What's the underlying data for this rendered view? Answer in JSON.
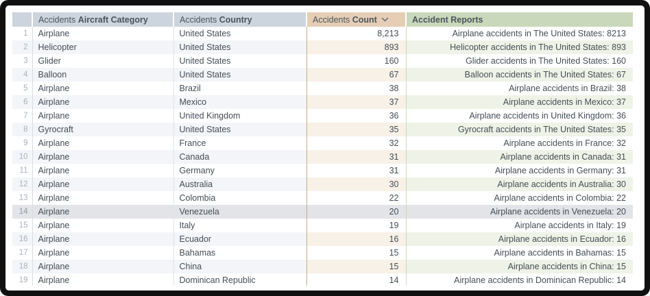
{
  "table": {
    "columns": [
      {
        "id": "row_number",
        "prefix": "",
        "label": ""
      },
      {
        "id": "aircraft_category",
        "prefix": "Accidents",
        "label": "Aircraft Category"
      },
      {
        "id": "country",
        "prefix": "Accidents",
        "label": "Country"
      },
      {
        "id": "count",
        "prefix": "Accidents",
        "label": "Count",
        "sort": "descending"
      },
      {
        "id": "reports",
        "prefix": "",
        "label": "Accident Reports"
      }
    ],
    "selected_row": 14,
    "rows": [
      {
        "n": 1,
        "category": "Airplane",
        "country": "United States",
        "count": "8,213",
        "report": "Airplane accidents in The United States: 8213"
      },
      {
        "n": 2,
        "category": "Helicopter",
        "country": "United States",
        "count": "893",
        "report": "Helicopter accidents in The United States: 893"
      },
      {
        "n": 3,
        "category": "Glider",
        "country": "United States",
        "count": "160",
        "report": "Glider accidents in The United States: 160"
      },
      {
        "n": 4,
        "category": "Balloon",
        "country": "United States",
        "count": "67",
        "report": "Balloon accidents in The United States: 67"
      },
      {
        "n": 5,
        "category": "Airplane",
        "country": "Brazil",
        "count": "38",
        "report": "Airplane accidents in Brazil: 38"
      },
      {
        "n": 6,
        "category": "Airplane",
        "country": "Mexico",
        "count": "37",
        "report": "Airplane accidents in Mexico: 37"
      },
      {
        "n": 7,
        "category": "Airplane",
        "country": "United Kingdom",
        "count": "36",
        "report": "Airplane accidents in United Kingdom: 36"
      },
      {
        "n": 8,
        "category": "Gyrocraft",
        "country": "United States",
        "count": "35",
        "report": "Gyrocraft accidents in The United States: 35"
      },
      {
        "n": 9,
        "category": "Airplane",
        "country": "France",
        "count": "32",
        "report": "Airplane accidents in France: 32"
      },
      {
        "n": 10,
        "category": "Airplane",
        "country": "Canada",
        "count": "31",
        "report": "Airplane accidents in Canada: 31"
      },
      {
        "n": 11,
        "category": "Airplane",
        "country": "Germany",
        "count": "31",
        "report": "Airplane accidents in Germany: 31"
      },
      {
        "n": 12,
        "category": "Airplane",
        "country": "Australia",
        "count": "30",
        "report": "Airplane accidents in Australia: 30"
      },
      {
        "n": 13,
        "category": "Airplane",
        "country": "Colombia",
        "count": "22",
        "report": "Airplane accidents in Colombia: 22"
      },
      {
        "n": 14,
        "category": "Airplane",
        "country": "Venezuela",
        "count": "20",
        "report": "Airplane accidents in Venezuela: 20"
      },
      {
        "n": 15,
        "category": "Airplane",
        "country": "Italy",
        "count": "19",
        "report": "Airplane accidents in Italy: 19"
      },
      {
        "n": 16,
        "category": "Airplane",
        "country": "Ecuador",
        "count": "16",
        "report": "Airplane accidents in Ecuador: 16"
      },
      {
        "n": 17,
        "category": "Airplane",
        "country": "Bahamas",
        "count": "15",
        "report": "Airplane accidents in Bahamas: 15"
      },
      {
        "n": 18,
        "category": "Airplane",
        "country": "China",
        "count": "15",
        "report": "Airplane accidents in China: 15"
      },
      {
        "n": 19,
        "category": "Airplane",
        "country": "Dominican Republic",
        "count": "14",
        "report": "Airplane accidents in Dominican Republic: 14"
      }
    ]
  },
  "colors": {
    "header_blue": "#ccd4dd",
    "header_tan": "#e5ceb5",
    "header_green": "#c9d8ba",
    "row_alt_blue": "#f3f5f8",
    "row_alt_tan": "#f7f1e7",
    "row_alt_green": "#eff3e7",
    "selected_row": "#e3e4e7",
    "frame": "#101010"
  }
}
